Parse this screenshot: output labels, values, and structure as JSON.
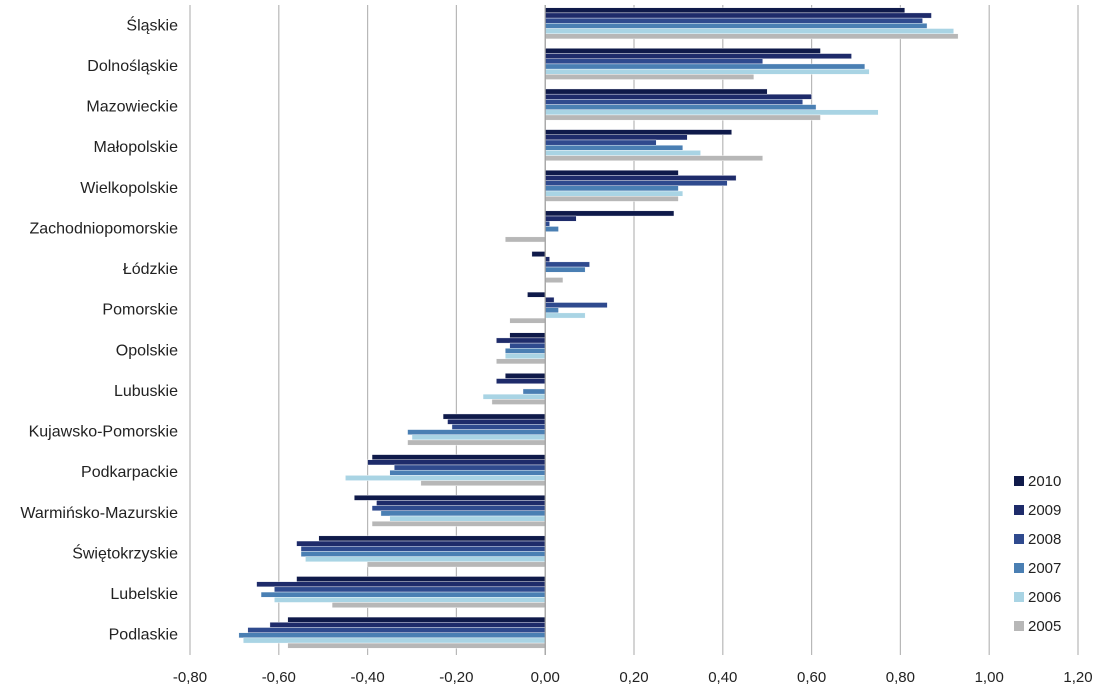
{
  "chart_data": {
    "type": "bar",
    "orientation": "horizontal",
    "title": "",
    "xlabel": "",
    "ylabel": "",
    "xlim": [
      -0.8,
      1.2
    ],
    "grid": "vertical",
    "legend_position": "bottom-right",
    "categories": [
      "Śląskie",
      "Dolnośląskie",
      "Mazowieckie",
      "Małopolskie",
      "Wielkopolskie",
      "Zachodniopomorskie",
      "Łódzkie",
      "Pomorskie",
      "Opolskie",
      "Lubuskie",
      "Kujawsko-Pomorskie",
      "Podkarpackie",
      "Warmińsko-Mazurskie",
      "Świętokrzyskie",
      "Lubelskie",
      "Podlaskie"
    ],
    "x_ticks": [
      "-0,80",
      "-0,60",
      "-0,40",
      "-0,20",
      "0,00",
      "0,20",
      "0,40",
      "0,60",
      "0,80",
      "1,00",
      "1,20"
    ],
    "series": [
      {
        "name": "2010",
        "color": "#0f1a4a",
        "values": [
          0.81,
          0.62,
          0.5,
          0.42,
          0.3,
          0.29,
          -0.03,
          -0.04,
          -0.08,
          -0.09,
          -0.23,
          -0.39,
          -0.43,
          -0.51,
          -0.56,
          -0.58
        ]
      },
      {
        "name": "2009",
        "color": "#1e2b6a",
        "values": [
          0.87,
          0.69,
          0.6,
          0.32,
          0.43,
          0.07,
          0.01,
          0.02,
          -0.11,
          -0.11,
          -0.22,
          -0.4,
          -0.38,
          -0.56,
          -0.65,
          -0.62
        ]
      },
      {
        "name": "2008",
        "color": "#2f4a8e",
        "values": [
          0.85,
          0.49,
          0.58,
          0.25,
          0.41,
          0.01,
          0.1,
          0.14,
          -0.08,
          0.0,
          -0.21,
          -0.34,
          -0.39,
          -0.55,
          -0.61,
          -0.67
        ]
      },
      {
        "name": "2007",
        "color": "#4a7fb3",
        "values": [
          0.86,
          0.72,
          0.61,
          0.31,
          0.3,
          0.03,
          0.09,
          0.03,
          -0.09,
          -0.05,
          -0.31,
          -0.35,
          -0.37,
          -0.55,
          -0.64,
          -0.69
        ]
      },
      {
        "name": "2006",
        "color": "#a9d4e4",
        "values": [
          0.92,
          0.73,
          0.75,
          0.35,
          0.31,
          0.0,
          0.0,
          0.09,
          -0.09,
          -0.14,
          -0.3,
          -0.45,
          -0.35,
          -0.54,
          -0.61,
          -0.68
        ]
      },
      {
        "name": "2005",
        "color": "#b7b7b7",
        "values": [
          0.93,
          0.47,
          0.62,
          0.49,
          0.3,
          -0.09,
          0.04,
          -0.08,
          -0.11,
          -0.12,
          -0.31,
          -0.28,
          -0.39,
          -0.4,
          -0.48,
          -0.58
        ]
      }
    ]
  }
}
